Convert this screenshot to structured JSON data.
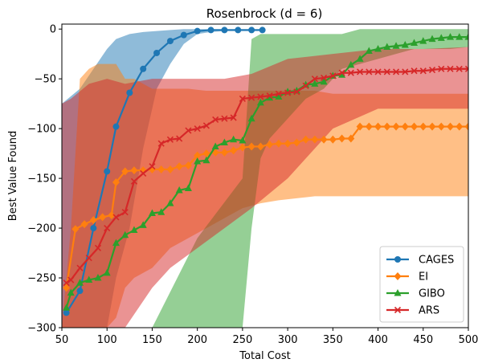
{
  "chart_data": {
    "type": "line",
    "title": "Rosenbrock (d = 6)",
    "xlabel": "Total Cost",
    "ylabel": "Best Value Found",
    "xlim": [
      50,
      500
    ],
    "ylim": [
      -300,
      5
    ],
    "xticks": [
      50,
      100,
      150,
      200,
      250,
      300,
      350,
      400,
      450,
      500
    ],
    "yticks": [
      0,
      -50,
      -100,
      -150,
      -200,
      -250,
      -300
    ],
    "grid": false,
    "legend_position": "lower-right",
    "series": [
      {
        "name": "CAGES",
        "color": "#1f77b4",
        "marker": "circle",
        "x": [
          55,
          70,
          85,
          100,
          110,
          125,
          140,
          155,
          170,
          185,
          200,
          215,
          230,
          245,
          260,
          272
        ],
        "y": [
          -285,
          -263,
          -200,
          -143,
          -98,
          -64,
          -40,
          -24,
          -12,
          -6,
          -2,
          -1,
          -1,
          -1,
          -1,
          -1
        ],
        "band_x": [
          50,
          70,
          85,
          100,
          110,
          125,
          140,
          155,
          170,
          185,
          200,
          215,
          230,
          245,
          260,
          272
        ],
        "band_upper": [
          -75,
          -60,
          -40,
          -20,
          -10,
          -5,
          -3,
          -2,
          -1,
          0,
          0,
          0,
          0,
          0,
          0,
          0
        ],
        "band_lower": [
          -300,
          -300,
          -300,
          -300,
          -250,
          -200,
          -120,
          -60,
          -35,
          -15,
          -5,
          -3,
          -2,
          -2,
          -2,
          -2
        ]
      },
      {
        "name": "EI",
        "color": "#ff7f0e",
        "marker": "diamond",
        "x": [
          55,
          65,
          75,
          85,
          95,
          105,
          110,
          120,
          130,
          140,
          150,
          160,
          170,
          180,
          190,
          200,
          210,
          220,
          230,
          240,
          250,
          260,
          270,
          280,
          290,
          300,
          310,
          320,
          330,
          340,
          350,
          360,
          370,
          380,
          390,
          400,
          410,
          420,
          430,
          440,
          450,
          460,
          470,
          480,
          490,
          500
        ],
        "y": [
          -260,
          -201,
          -196,
          -192,
          -189,
          -187,
          -154,
          -143,
          -142,
          -142,
          -141,
          -141,
          -141,
          -138,
          -137,
          -127,
          -125,
          -124,
          -124,
          -122,
          -119,
          -118,
          -118,
          -116,
          -115,
          -115,
          -114,
          -111,
          -111,
          -111,
          -111,
          -110,
          -110,
          -98,
          -98,
          -98,
          -98,
          -98,
          -98,
          -98,
          -98,
          -98,
          -98,
          -98,
          -98,
          -98
        ],
        "band_x": [
          50,
          60,
          70,
          80,
          90,
          100,
          110,
          120,
          130,
          150,
          170,
          190,
          210,
          230,
          250,
          270,
          290,
          310,
          330,
          350,
          370,
          380,
          390,
          410,
          430,
          450,
          470,
          490,
          500
        ],
        "band_upper": [
          -300,
          -200,
          -50,
          -40,
          -35,
          -35,
          -35,
          -50,
          -50,
          -60,
          -60,
          -60,
          -62,
          -62,
          -62,
          -62,
          -62,
          -62,
          -62,
          -65,
          -65,
          -65,
          -65,
          -65,
          -65,
          -65,
          -65,
          -65,
          -65
        ],
        "band_lower": [
          -300,
          -300,
          -300,
          -300,
          -300,
          -300,
          -290,
          -260,
          -250,
          -240,
          -220,
          -210,
          -200,
          -190,
          -180,
          -175,
          -172,
          -170,
          -168,
          -168,
          -168,
          -168,
          -168,
          -168,
          -168,
          -168,
          -168,
          -168,
          -168
        ]
      },
      {
        "name": "GIBO",
        "color": "#2ca02c",
        "marker": "triangle",
        "x": [
          55,
          60,
          70,
          80,
          90,
          100,
          110,
          120,
          130,
          140,
          150,
          160,
          170,
          180,
          190,
          200,
          210,
          220,
          230,
          240,
          250,
          260,
          270,
          280,
          290,
          300,
          310,
          320,
          330,
          340,
          350,
          360,
          370,
          380,
          390,
          400,
          410,
          420,
          430,
          440,
          450,
          460,
          470,
          480,
          490,
          500
        ],
        "y": [
          -280,
          -265,
          -255,
          -252,
          -250,
          -245,
          -215,
          -207,
          -202,
          -197,
          -185,
          -184,
          -175,
          -162,
          -160,
          -133,
          -132,
          -118,
          -114,
          -111,
          -112,
          -90,
          -74,
          -69,
          -68,
          -63,
          -62,
          -56,
          -55,
          -53,
          -47,
          -46,
          -36,
          -30,
          -22,
          -20,
          -18,
          -17,
          -16,
          -14,
          -12,
          -10,
          -9,
          -8,
          -8,
          -8
        ],
        "band_x": [
          50,
          100,
          150,
          200,
          250,
          260,
          270,
          280,
          290,
          300,
          320,
          340,
          360,
          380,
          400,
          420,
          440,
          460,
          480,
          500
        ],
        "band_upper": [
          -300,
          -300,
          -300,
          -210,
          -150,
          -10,
          -5,
          -5,
          -5,
          -5,
          -5,
          -5,
          -5,
          0,
          0,
          0,
          0,
          0,
          0,
          0
        ],
        "band_lower": [
          -300,
          -300,
          -300,
          -300,
          -300,
          -200,
          -130,
          -110,
          -100,
          -90,
          -70,
          -60,
          -40,
          -35,
          -30,
          -25,
          -20,
          -20,
          -20,
          -18
        ]
      },
      {
        "name": "ARS",
        "color": "#d62728",
        "marker": "x",
        "x": [
          55,
          60,
          70,
          80,
          90,
          100,
          110,
          120,
          130,
          140,
          150,
          160,
          170,
          180,
          190,
          200,
          210,
          220,
          230,
          240,
          250,
          260,
          270,
          280,
          290,
          300,
          310,
          320,
          330,
          340,
          350,
          360,
          370,
          380,
          390,
          400,
          410,
          420,
          430,
          440,
          450,
          460,
          470,
          480,
          490,
          500
        ],
        "y": [
          -255,
          -252,
          -240,
          -230,
          -220,
          -200,
          -189,
          -184,
          -153,
          -145,
          -138,
          -115,
          -111,
          -110,
          -102,
          -100,
          -97,
          -91,
          -90,
          -89,
          -70,
          -69,
          -68,
          -67,
          -65,
          -64,
          -63,
          -57,
          -50,
          -49,
          -47,
          -44,
          -44,
          -43,
          -43,
          -43,
          -43,
          -43,
          -43,
          -42,
          -42,
          -41,
          -40,
          -40,
          -40,
          -40
        ],
        "band_x": [
          50,
          60,
          80,
          100,
          120,
          150,
          170,
          200,
          230,
          260,
          300,
          350,
          400,
          450,
          500
        ],
        "band_upper": [
          -75,
          -70,
          -55,
          -50,
          -55,
          -50,
          -50,
          -50,
          -50,
          -45,
          -30,
          -25,
          -20,
          -20,
          -18
        ],
        "band_lower": [
          -300,
          -300,
          -300,
          -300,
          -300,
          -260,
          -240,
          -220,
          -200,
          -180,
          -150,
          -100,
          -80,
          -80,
          -80
        ]
      }
    ]
  }
}
